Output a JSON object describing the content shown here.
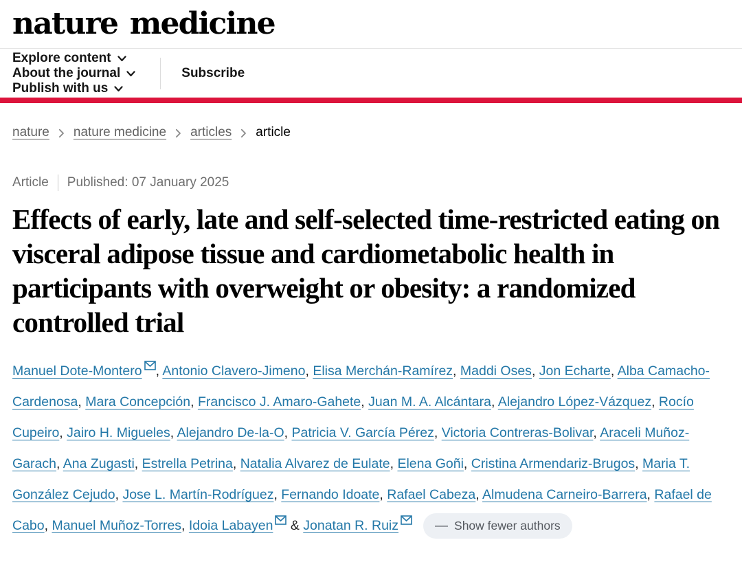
{
  "colors": {
    "accent_red": "#dc143c",
    "link_blue": "#2478a8"
  },
  "icons": {
    "nav_dropdown": "chevron-down",
    "breadcrumb_separator": "chevron-right",
    "author_email": "envelope",
    "collapse_authors": "minus-dash"
  },
  "header": {
    "logo": "nature medicine",
    "nav_items": [
      {
        "label": "Explore content",
        "dropdown": true
      },
      {
        "label": "About the journal",
        "dropdown": true
      },
      {
        "label": "Publish with us",
        "dropdown": true
      }
    ],
    "subscribe_label": "Subscribe"
  },
  "breadcrumb": [
    {
      "label": "nature",
      "link": true
    },
    {
      "label": "nature medicine",
      "link": true
    },
    {
      "label": "articles",
      "link": true
    },
    {
      "label": "article",
      "link": false
    }
  ],
  "meta": {
    "type_label": "Article",
    "published_label": "Published:",
    "date": "07 January 2025"
  },
  "title": "Effects of early, late and self-selected time-restricted eating on visceral adipose tissue and cardiometabolic health in participants with overweight or obesity: a randomized controlled trial",
  "authors": {
    "and_separator": "&",
    "comma_separator": ", ",
    "show_fewer_label": "Show fewer authors",
    "list": [
      {
        "name": "Manuel Dote-Montero",
        "email": true
      },
      {
        "name": "Antonio Clavero-Jimeno",
        "email": false
      },
      {
        "name": "Elisa Merchán-Ramírez",
        "email": false
      },
      {
        "name": "Maddi Oses",
        "email": false
      },
      {
        "name": "Jon Echarte",
        "email": false
      },
      {
        "name": "Alba Camacho-Cardenosa",
        "email": false
      },
      {
        "name": "Mara Concepción",
        "email": false
      },
      {
        "name": "Francisco J. Amaro-Gahete",
        "email": false
      },
      {
        "name": "Juan M. A. Alcántara",
        "email": false
      },
      {
        "name": "Alejandro López-Vázquez",
        "email": false
      },
      {
        "name": "Rocío Cupeiro",
        "email": false
      },
      {
        "name": "Jairo H. Migueles",
        "email": false
      },
      {
        "name": "Alejandro De-la-O",
        "email": false
      },
      {
        "name": "Patricia V. García Pérez",
        "email": false
      },
      {
        "name": "Victoria Contreras-Bolivar",
        "email": false
      },
      {
        "name": "Araceli Muñoz-Garach",
        "email": false
      },
      {
        "name": "Ana Zugasti",
        "email": false
      },
      {
        "name": "Estrella Petrina",
        "email": false
      },
      {
        "name": "Natalia Alvarez de Eulate",
        "email": false
      },
      {
        "name": "Elena Goñi",
        "email": false
      },
      {
        "name": "Cristina Armendariz-Brugos",
        "email": false
      },
      {
        "name": "Maria T. González Cejudo",
        "email": false
      },
      {
        "name": "Jose L. Martín-Rodríguez",
        "email": false
      },
      {
        "name": "Fernando Idoate",
        "email": false
      },
      {
        "name": "Rafael Cabeza",
        "email": false
      },
      {
        "name": "Almudena Carneiro-Barrera",
        "email": false
      },
      {
        "name": "Rafael de Cabo",
        "email": false
      },
      {
        "name": "Manuel Muñoz-Torres",
        "email": false
      },
      {
        "name": "Idoia Labayen",
        "email": true
      },
      {
        "name": "Jonatan R. Ruiz",
        "email": true
      }
    ]
  }
}
